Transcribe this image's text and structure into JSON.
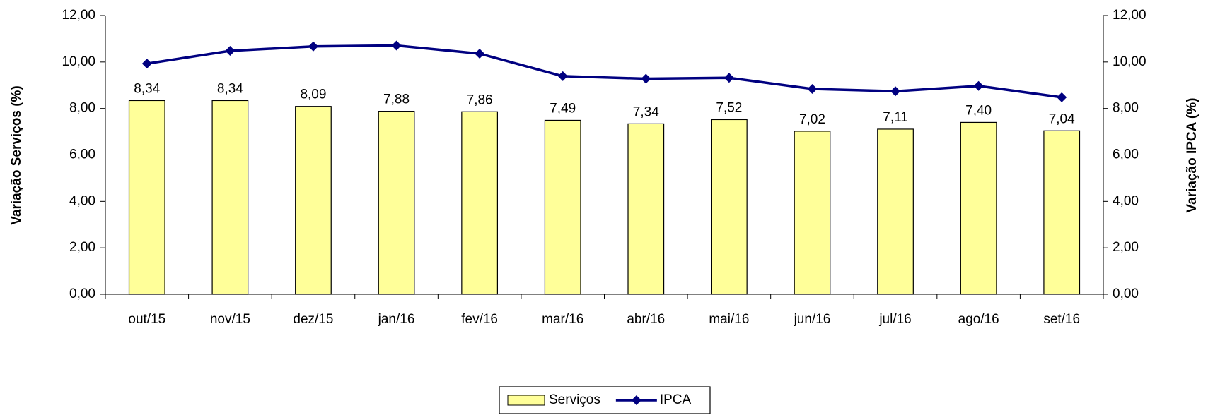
{
  "chart_data": {
    "type": "combo",
    "y_label": "Variação Serviços (%)",
    "y2_label": "Variação IPCA (%)",
    "categories": [
      "out/15",
      "nov/15",
      "dez/15",
      "jan/16",
      "fev/16",
      "mar/16",
      "abr/16",
      "mai/16",
      "jun/16",
      "jul/16",
      "ago/16",
      "set/16"
    ],
    "series": [
      {
        "name": "Serviços",
        "type": "bar",
        "color": "#ffff99",
        "values": [
          8.34,
          8.34,
          8.09,
          7.88,
          7.86,
          7.49,
          7.34,
          7.52,
          7.02,
          7.11,
          7.4,
          7.04
        ],
        "value_labels": [
          "8,34",
          "8,34",
          "8,09",
          "7,88",
          "7,86",
          "7,49",
          "7,34",
          "7,52",
          "7,02",
          "7,11",
          "7,40",
          "7,04"
        ]
      },
      {
        "name": "IPCA",
        "type": "line",
        "axis": "y2",
        "color": "#000080",
        "values": [
          9.93,
          10.48,
          10.67,
          10.71,
          10.36,
          9.39,
          9.28,
          9.32,
          8.84,
          8.74,
          8.97,
          8.48
        ]
      }
    ],
    "ylim": [
      0,
      12
    ],
    "yticks": [
      {
        "value": 0,
        "label": "0,00"
      },
      {
        "value": 2,
        "label": "2,00"
      },
      {
        "value": 4,
        "label": "4,00"
      },
      {
        "value": 6,
        "label": "6,00"
      },
      {
        "value": 8,
        "label": "8,00"
      },
      {
        "value": 10,
        "label": "10,00"
      },
      {
        "value": 12,
        "label": "12,00"
      }
    ],
    "y2lim": [
      0,
      12
    ],
    "y2ticks": [
      {
        "value": 0,
        "label": "0,00"
      },
      {
        "value": 2,
        "label": "2,00"
      },
      {
        "value": 4,
        "label": "4,00"
      },
      {
        "value": 6,
        "label": "6,00"
      },
      {
        "value": 8,
        "label": "8,00"
      },
      {
        "value": 10,
        "label": "10,00"
      },
      {
        "value": 12,
        "label": "12,00"
      }
    ],
    "legend": "bottom"
  }
}
